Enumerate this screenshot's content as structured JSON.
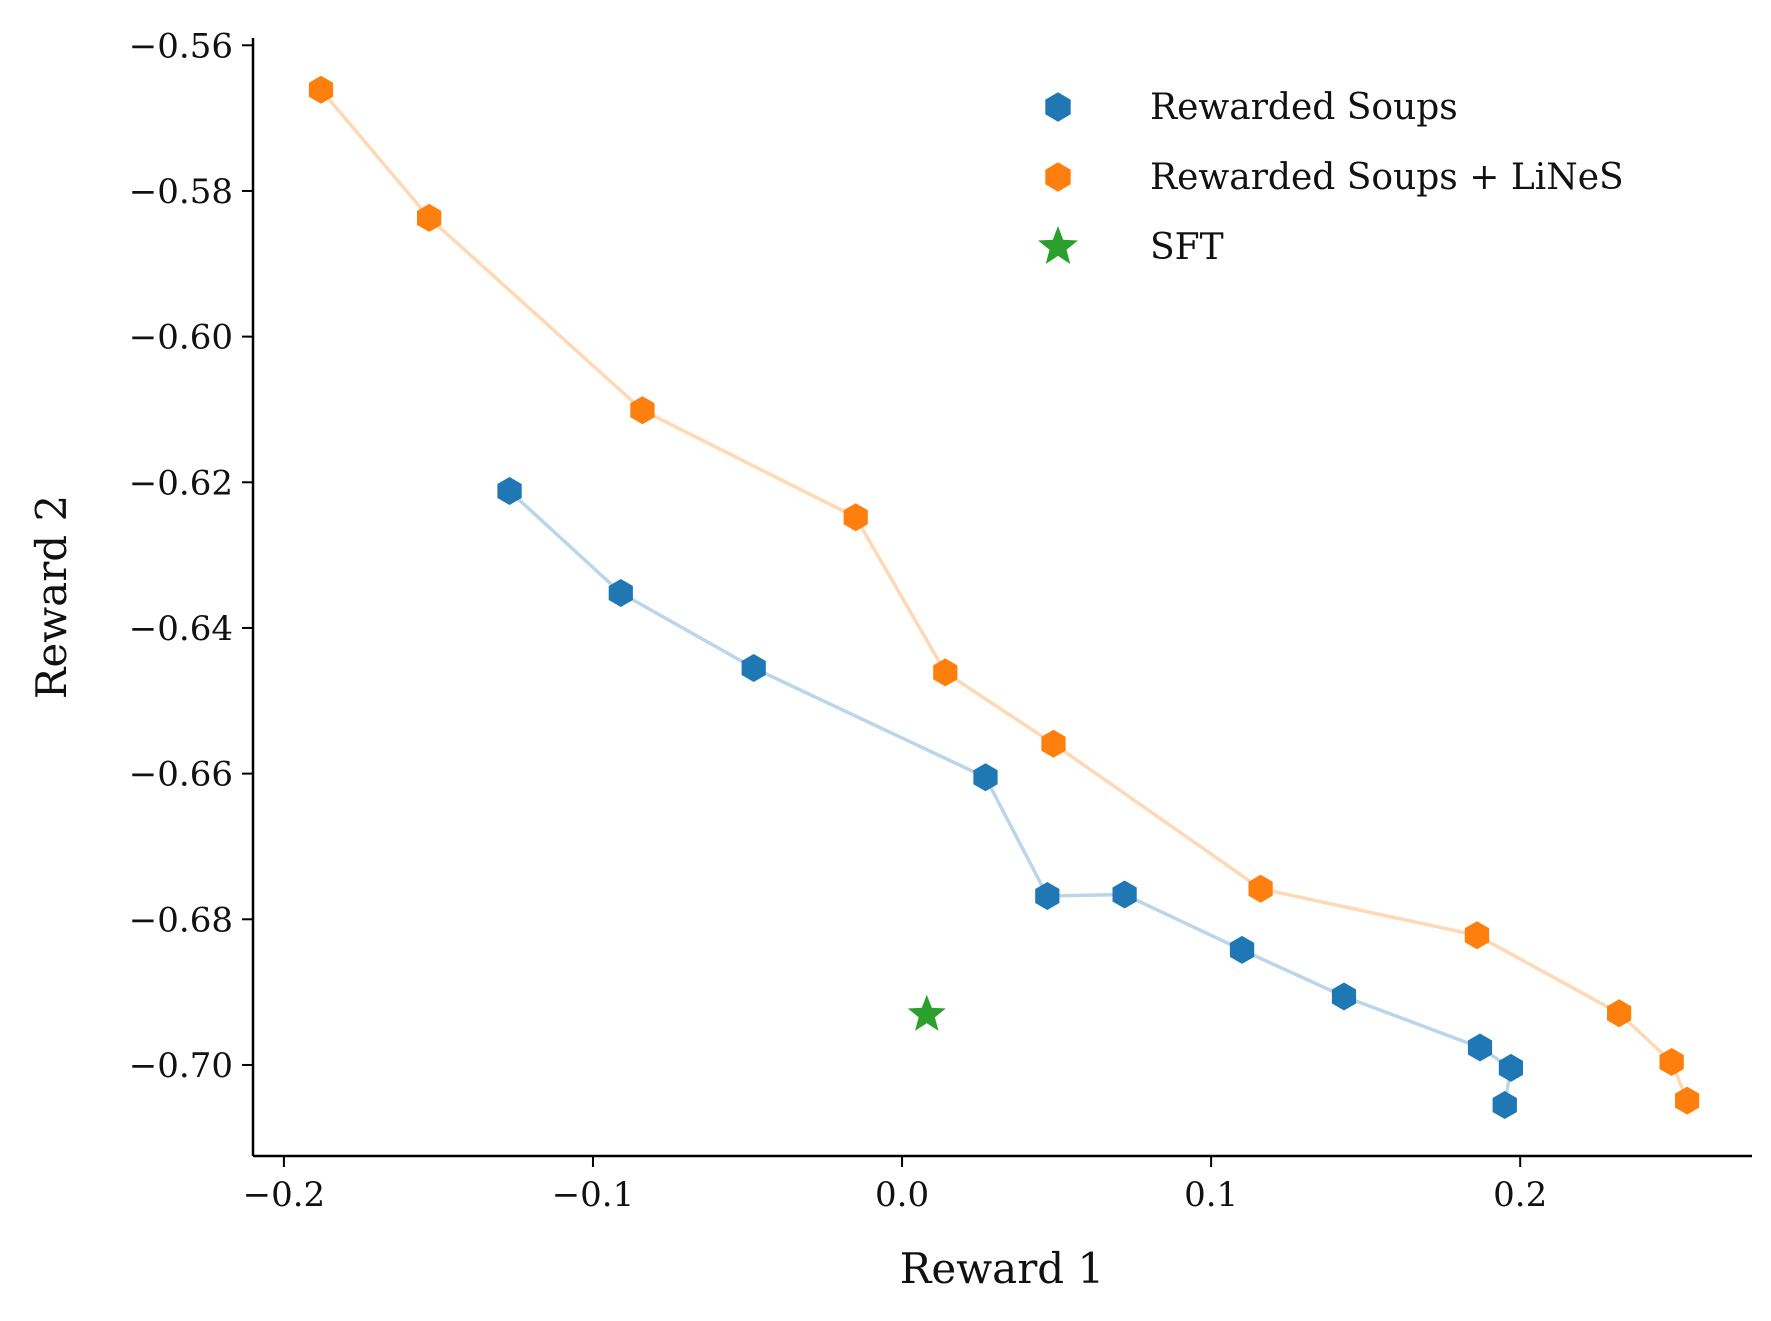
{
  "chart_data": {
    "type": "scatter",
    "xlabel": "Reward 1",
    "ylabel": "Reward 2",
    "xlim": [
      -0.21,
      0.275
    ],
    "ylim": [
      -0.7125,
      -0.559
    ],
    "x_ticks": [
      -0.2,
      -0.1,
      0.0,
      0.1,
      0.2
    ],
    "x_tick_labels": [
      "−0.2",
      "−0.1",
      "0.0",
      "0.1",
      "0.2"
    ],
    "y_ticks": [
      -0.56,
      -0.58,
      -0.6,
      -0.62,
      -0.64,
      -0.66,
      -0.68,
      -0.7
    ],
    "y_tick_labels": [
      "−0.56",
      "−0.58",
      "−0.60",
      "−0.62",
      "−0.64",
      "−0.66",
      "−0.68",
      "−0.70"
    ],
    "grid": false,
    "legend_position": "top-right",
    "series": [
      {
        "name": "Rewarded Soups",
        "color": "#1f77b4",
        "marker": "hexagon",
        "connected": true,
        "points": [
          {
            "x": -0.127,
            "y": -0.6212
          },
          {
            "x": -0.091,
            "y": -0.6352
          },
          {
            "x": -0.048,
            "y": -0.6455
          },
          {
            "x": 0.027,
            "y": -0.6605
          },
          {
            "x": 0.047,
            "y": -0.6768
          },
          {
            "x": 0.072,
            "y": -0.6766
          },
          {
            "x": 0.11,
            "y": -0.6842
          },
          {
            "x": 0.143,
            "y": -0.6906
          },
          {
            "x": 0.187,
            "y": -0.6976
          },
          {
            "x": 0.197,
            "y": -0.7004
          },
          {
            "x": 0.195,
            "y": -0.7055
          }
        ]
      },
      {
        "name": "Rewarded Soups + LiNeS",
        "color": "#ff7f0e",
        "marker": "hexagon",
        "connected": true,
        "points": [
          {
            "x": -0.188,
            "y": -0.5661
          },
          {
            "x": -0.153,
            "y": -0.5837
          },
          {
            "x": -0.084,
            "y": -0.6101
          },
          {
            "x": -0.015,
            "y": -0.6248
          },
          {
            "x": 0.014,
            "y": -0.6461
          },
          {
            "x": 0.049,
            "y": -0.6559
          },
          {
            "x": 0.116,
            "y": -0.6758
          },
          {
            "x": 0.186,
            "y": -0.6822
          },
          {
            "x": 0.232,
            "y": -0.6929
          },
          {
            "x": 0.249,
            "y": -0.6996
          },
          {
            "x": 0.254,
            "y": -0.7049
          }
        ]
      },
      {
        "name": "SFT",
        "color": "#2ca02c",
        "marker": "star",
        "connected": false,
        "points": [
          {
            "x": 0.008,
            "y": -0.6931
          }
        ]
      }
    ]
  }
}
